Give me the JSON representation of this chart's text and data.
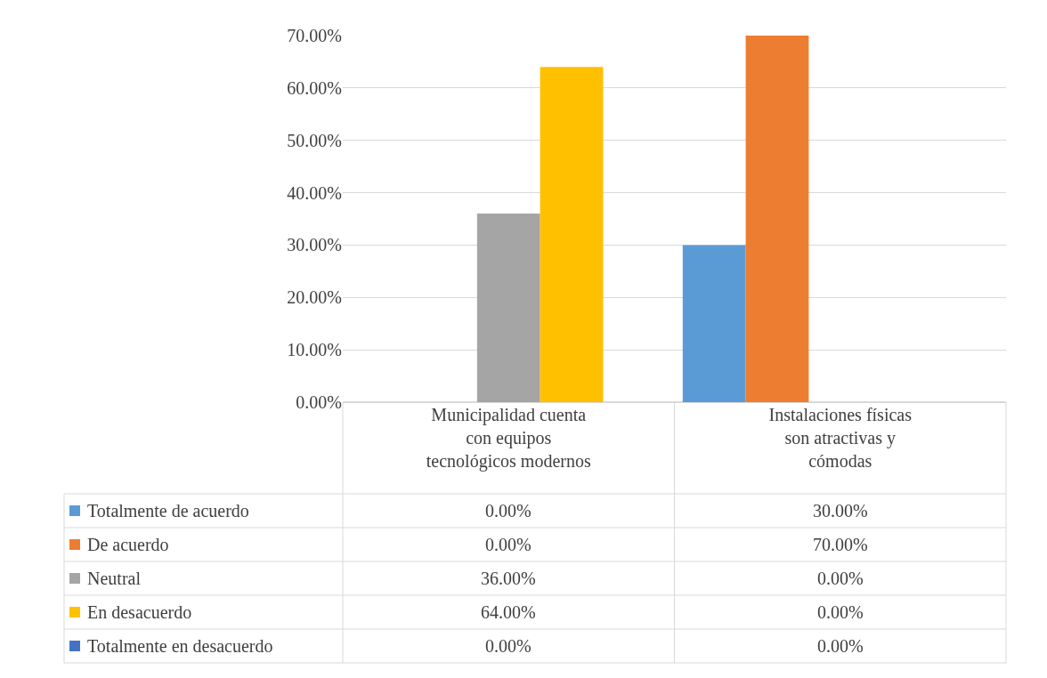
{
  "chart_data": {
    "type": "bar",
    "categories": [
      "Municipalidad cuenta con equipos tecnológicos modernos",
      "Instalaciones físicas son atractivas y cómodas"
    ],
    "series": [
      {
        "name": "Totalmente de acuerdo",
        "color": "#5b9bd5",
        "values": [
          0,
          30
        ],
        "value_labels": [
          "0.00%",
          "30.00%"
        ]
      },
      {
        "name": "De acuerdo",
        "color": "#ed7d31",
        "values": [
          0,
          70
        ],
        "value_labels": [
          "0.00%",
          "70.00%"
        ]
      },
      {
        "name": "Neutral",
        "color": "#a5a5a5",
        "values": [
          36,
          0
        ],
        "value_labels": [
          "36.00%",
          "0.00%"
        ]
      },
      {
        "name": "En desacuerdo",
        "color": "#ffc000",
        "values": [
          64,
          0
        ],
        "value_labels": [
          "64.00%",
          "0.00%"
        ]
      },
      {
        "name": "Totalmente en desacuerdo",
        "color": "#4472c4",
        "values": [
          0,
          0
        ],
        "value_labels": [
          "0.00%",
          "0.00%"
        ]
      }
    ],
    "ylim": [
      0,
      70
    ],
    "yticks": [
      {
        "value": 0,
        "label": "0.00%"
      },
      {
        "value": 10,
        "label": "10.00%"
      },
      {
        "value": 20,
        "label": "20.00%"
      },
      {
        "value": 30,
        "label": "30.00%"
      },
      {
        "value": 40,
        "label": "40.00%"
      },
      {
        "value": 50,
        "label": "50.00%"
      },
      {
        "value": 60,
        "label": "60.00%"
      },
      {
        "value": 70,
        "label": "70.00%"
      }
    ],
    "grid": "y",
    "legend": "bottom left"
  }
}
